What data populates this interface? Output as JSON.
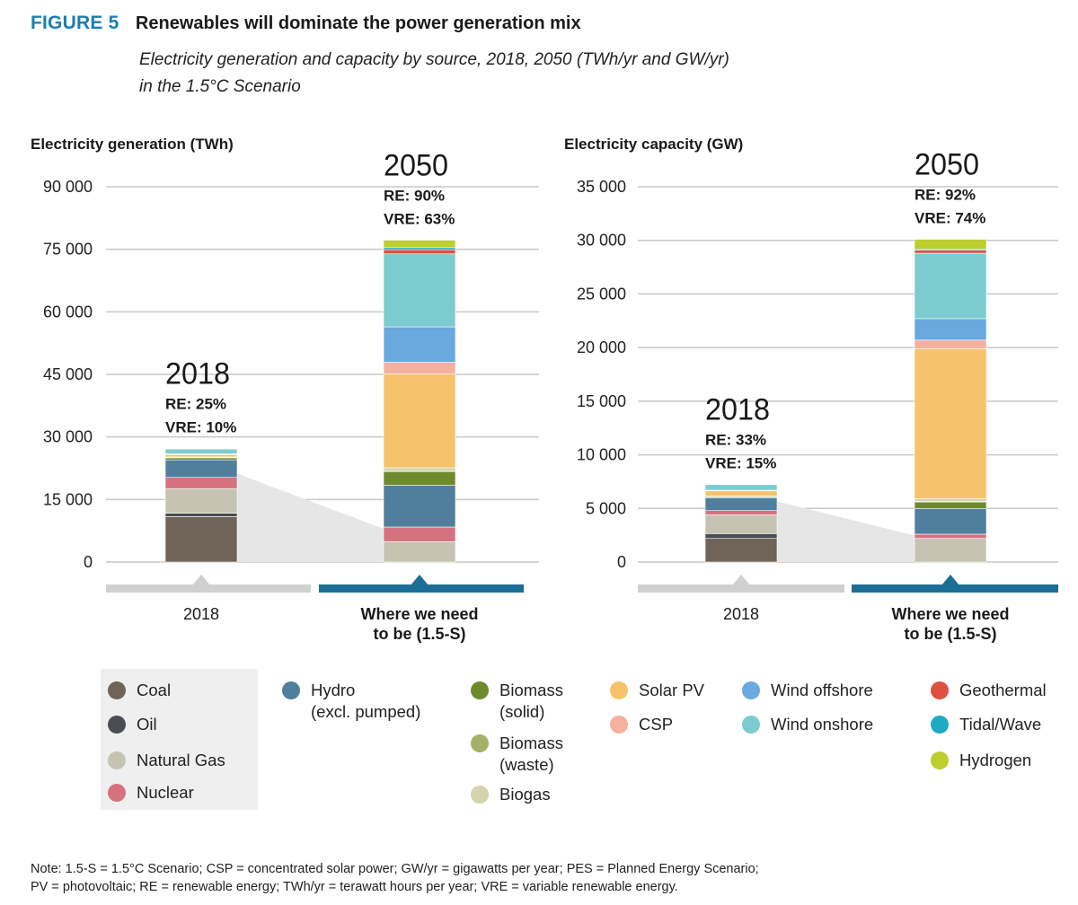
{
  "figure": {
    "label": "FIGURE 5",
    "title": "Renewables will dominate the power generation mix",
    "subtitle_line1": "Electricity generation and capacity by source, 2018, 2050 (TWh/yr and GW/yr)",
    "subtitle_line2": "in the 1.5°C Scenario"
  },
  "colors": {
    "Coal": "#706358",
    "Oil": "#4a4e52",
    "Natural Gas": "#c6c3b2",
    "Nuclear": "#d6727f",
    "Hydro": "#4f7f9c",
    "Biomass (solid)": "#6f8a2d",
    "Biomass (waste)": "#a4b065",
    "Biogas": "#d3d3ae",
    "Solar PV": "#f6c26c",
    "CSP": "#f5b09f",
    "Wind offshore": "#6aa8e0",
    "Wind onshore": "#7ccccf",
    "Geothermal": "#de5140",
    "Tidal/Wave": "#1fa9c3",
    "Hydrogen": "#bdce2e",
    "bar_2018_strip": "#d0d0d0",
    "bar_2050_strip": "#1b6e96",
    "gridline": "#c8c8c8",
    "wedge": "#e6e6e6"
  },
  "chart_data": [
    {
      "type": "bar",
      "stacked": true,
      "title": "Electricity generation (TWh)",
      "categories": [
        "2018",
        "Where we need to be (1.5-S)"
      ],
      "ylim": [
        0,
        90000
      ],
      "yticks": [
        0,
        15000,
        30000,
        45000,
        60000,
        75000,
        90000
      ],
      "ytick_labels": [
        "0",
        "15 000",
        "30 000",
        "45 000",
        "60 000",
        "75 000",
        "90 000"
      ],
      "bar_annotations": [
        {
          "year": "2018",
          "re": "RE: 25%",
          "vre": "VRE: 10%"
        },
        {
          "year": "2050",
          "re": "RE: 90%",
          "vre": "VRE: 63%"
        }
      ],
      "series": [
        {
          "name": "Coal",
          "values": [
            10900,
            0
          ]
        },
        {
          "name": "Oil",
          "values": [
            800,
            0
          ]
        },
        {
          "name": "Natural Gas",
          "values": [
            5900,
            4900
          ]
        },
        {
          "name": "Nuclear",
          "values": [
            2700,
            3500
          ]
        },
        {
          "name": "Hydro",
          "values": [
            4200,
            10000
          ]
        },
        {
          "name": "Biomass (solid)",
          "values": [
            500,
            3300
          ]
        },
        {
          "name": "Biomass (waste)",
          "values": [
            100,
            200
          ]
        },
        {
          "name": "Biogas",
          "values": [
            100,
            700
          ]
        },
        {
          "name": "Solar PV",
          "values": [
            600,
            22500
          ]
        },
        {
          "name": "CSP",
          "values": [
            50,
            2800
          ]
        },
        {
          "name": "Wind offshore",
          "values": [
            100,
            8500
          ]
        },
        {
          "name": "Wind onshore",
          "values": [
            1200,
            17500
          ]
        },
        {
          "name": "Geothermal",
          "values": [
            50,
            1000
          ]
        },
        {
          "name": "Tidal/Wave",
          "values": [
            0,
            500
          ]
        },
        {
          "name": "Hydrogen",
          "values": [
            0,
            1800
          ]
        }
      ]
    },
    {
      "type": "bar",
      "stacked": true,
      "title": "Electricity capacity (GW)",
      "categories": [
        "2018",
        "Where we need to be (1.5-S)"
      ],
      "ylim": [
        0,
        35000
      ],
      "yticks": [
        0,
        5000,
        10000,
        15000,
        20000,
        25000,
        30000,
        35000
      ],
      "ytick_labels": [
        "0",
        "5 000",
        "10 000",
        "15 000",
        "20 000",
        "25 000",
        "30 000",
        "35 000"
      ],
      "bar_annotations": [
        {
          "year": "2018",
          "re": "RE: 33%",
          "vre": "VRE: 15%"
        },
        {
          "year": "2050",
          "re": "RE: 92%",
          "vre": "VRE: 74%"
        }
      ],
      "series": [
        {
          "name": "Coal",
          "values": [
            2200,
            0
          ]
        },
        {
          "name": "Oil",
          "values": [
            450,
            0
          ]
        },
        {
          "name": "Natural Gas",
          "values": [
            1750,
            2200
          ]
        },
        {
          "name": "Nuclear",
          "values": [
            400,
            400
          ]
        },
        {
          "name": "Hydro",
          "values": [
            1200,
            2400
          ]
        },
        {
          "name": "Biomass (solid)",
          "values": [
            100,
            600
          ]
        },
        {
          "name": "Biomass (waste)",
          "values": [
            20,
            50
          ]
        },
        {
          "name": "Biogas",
          "values": [
            30,
            250
          ]
        },
        {
          "name": "Solar PV",
          "values": [
            500,
            14000
          ]
        },
        {
          "name": "CSP",
          "values": [
            20,
            800
          ]
        },
        {
          "name": "Wind offshore",
          "values": [
            30,
            2000
          ]
        },
        {
          "name": "Wind onshore",
          "values": [
            550,
            6100
          ]
        },
        {
          "name": "Geothermal",
          "values": [
            10,
            300
          ]
        },
        {
          "name": "Tidal/Wave",
          "values": [
            0,
            100
          ]
        },
        {
          "name": "Hydrogen",
          "values": [
            0,
            900
          ]
        }
      ]
    }
  ],
  "xaxis_labels": [
    "2018",
    "Where we need\nto be (1.5-S)"
  ],
  "legend": [
    {
      "name": "Coal",
      "label": "Coal"
    },
    {
      "name": "Oil",
      "label": "Oil"
    },
    {
      "name": "Natural Gas",
      "label": "Natural Gas"
    },
    {
      "name": "Nuclear",
      "label": "Nuclear"
    },
    {
      "name": "Hydro",
      "label": "Hydro\n(excl. pumped)"
    },
    {
      "name": "Biomass (solid)",
      "label": "Biomass\n(solid)"
    },
    {
      "name": "Biomass (waste)",
      "label": "Biomass\n(waste)"
    },
    {
      "name": "Biogas",
      "label": "Biogas"
    },
    {
      "name": "Solar PV",
      "label": "Solar PV"
    },
    {
      "name": "CSP",
      "label": "CSP"
    },
    {
      "name": "Wind offshore",
      "label": "Wind offshore"
    },
    {
      "name": "Wind onshore",
      "label": "Wind onshore"
    },
    {
      "name": "Geothermal",
      "label": "Geothermal"
    },
    {
      "name": "Tidal/Wave",
      "label": "Tidal/Wave"
    },
    {
      "name": "Hydrogen",
      "label": "Hydrogen"
    }
  ],
  "note_line1": "Note: 1.5-S = 1.5°C Scenario; CSP = concentrated solar power; GW/yr = gigawatts per year; PES = Planned Energy Scenario;",
  "note_line2": "PV = photovoltaic; RE = renewable energy; TWh/yr = terawatt hours per year; VRE = variable renewable energy."
}
